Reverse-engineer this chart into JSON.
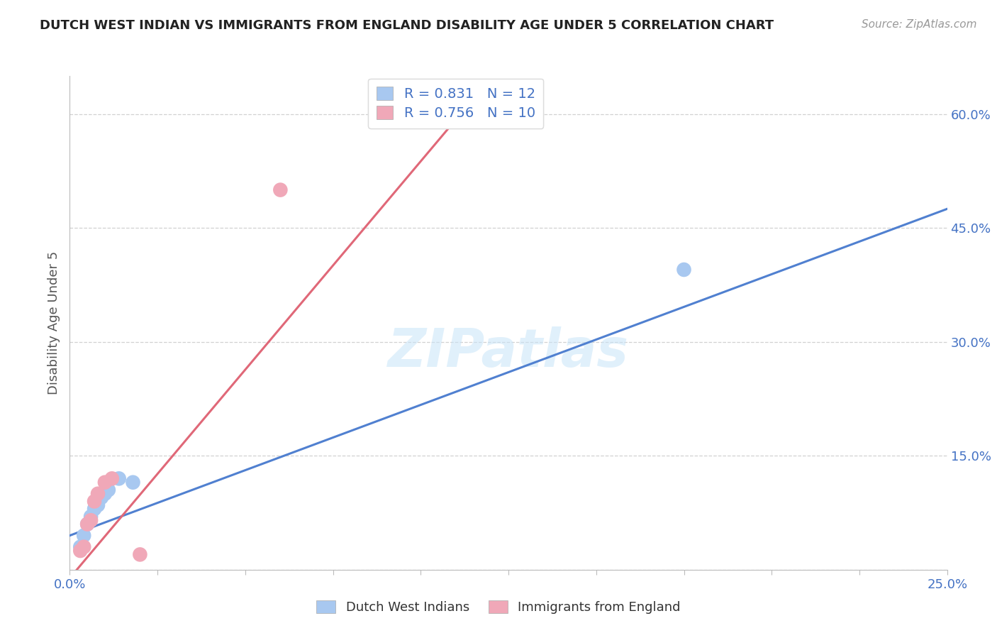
{
  "title": "DUTCH WEST INDIAN VS IMMIGRANTS FROM ENGLAND DISABILITY AGE UNDER 5 CORRELATION CHART",
  "source": "Source: ZipAtlas.com",
  "ylabel": "Disability Age Under 5",
  "xlim": [
    0.0,
    0.25
  ],
  "ylim": [
    0.0,
    0.65
  ],
  "xticks": [
    0.0,
    0.025,
    0.05,
    0.075,
    0.1,
    0.125,
    0.15,
    0.175,
    0.2,
    0.225,
    0.25
  ],
  "yticks": [
    0.0,
    0.15,
    0.3,
    0.45,
    0.6
  ],
  "ytick_labels": [
    "",
    "15.0%",
    "30.0%",
    "45.0%",
    "60.0%"
  ],
  "xtick_labels_show": {
    "0": "0.0%",
    "10": "25.0%"
  },
  "blue_points_x": [
    0.003,
    0.004,
    0.005,
    0.006,
    0.007,
    0.008,
    0.009,
    0.01,
    0.011,
    0.014,
    0.018,
    0.175
  ],
  "blue_points_y": [
    0.03,
    0.045,
    0.06,
    0.07,
    0.08,
    0.085,
    0.095,
    0.1,
    0.105,
    0.12,
    0.115,
    0.395
  ],
  "pink_points_x": [
    0.003,
    0.004,
    0.005,
    0.006,
    0.007,
    0.008,
    0.01,
    0.012,
    0.02,
    0.06
  ],
  "pink_points_y": [
    0.025,
    0.03,
    0.06,
    0.065,
    0.09,
    0.1,
    0.115,
    0.12,
    0.02,
    0.5
  ],
  "blue_R": 0.831,
  "blue_N": 12,
  "pink_R": 0.756,
  "pink_N": 10,
  "blue_line_x": [
    0.0,
    0.25
  ],
  "blue_line_y": [
    0.045,
    0.475
  ],
  "pink_line_x": [
    0.002,
    0.115
  ],
  "pink_line_y": [
    0.0,
    0.62
  ],
  "blue_color": "#A8C8F0",
  "pink_color": "#F0A8B8",
  "blue_line_color": "#5080D0",
  "pink_line_color": "#E06878",
  "watermark": "ZIPatlas",
  "background_color": "#FFFFFF",
  "grid_color": "#CCCCCC"
}
